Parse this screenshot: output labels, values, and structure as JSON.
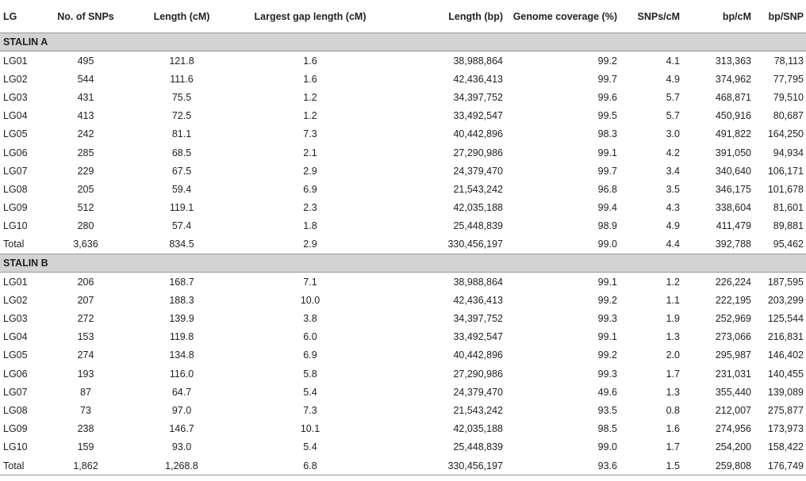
{
  "headers": [
    "LG",
    "No. of SNPs",
    "Length (cM)",
    "Largest gap length (cM)",
    "Length (bp)",
    "Genome coverage (%)",
    "SNPs/cM",
    "bp/cM",
    "bp/SNP"
  ],
  "groups": [
    {
      "label": "STALIN A",
      "rows": [
        [
          "LG01",
          "495",
          "121.8",
          "1.6",
          "38,988,864",
          "99.2",
          "4.1",
          "313,363",
          "78,113"
        ],
        [
          "LG02",
          "544",
          "111.6",
          "1.6",
          "42,436,413",
          "99.7",
          "4.9",
          "374,962",
          "77,795"
        ],
        [
          "LG03",
          "431",
          "75.5",
          "1.2",
          "34,397,752",
          "99.6",
          "5.7",
          "468,871",
          "79,510"
        ],
        [
          "LG04",
          "413",
          "72.5",
          "1.2",
          "33,492,547",
          "99.5",
          "5.7",
          "450,916",
          "80,687"
        ],
        [
          "LG05",
          "242",
          "81.1",
          "7.3",
          "40,442,896",
          "98.3",
          "3.0",
          "491,822",
          "164,250"
        ],
        [
          "LG06",
          "285",
          "68.5",
          "2.1",
          "27,290,986",
          "99.1",
          "4.2",
          "391,050",
          "94,934"
        ],
        [
          "LG07",
          "229",
          "67.5",
          "2.9",
          "24,379,470",
          "99.7",
          "3.4",
          "340,640",
          "106,171"
        ],
        [
          "LG08",
          "205",
          "59.4",
          "6.9",
          "21,543,242",
          "96.8",
          "3.5",
          "346,175",
          "101,678"
        ],
        [
          "LG09",
          "512",
          "119.1",
          "2.3",
          "42,035,188",
          "99.4",
          "4.3",
          "338,604",
          "81,601"
        ],
        [
          "LG10",
          "280",
          "57.4",
          "1.8",
          "25,448,839",
          "98.9",
          "4.9",
          "411,479",
          "89,881"
        ],
        [
          "Total",
          "3,636",
          "834.5",
          "2.9",
          "330,456,197",
          "99.0",
          "4.4",
          "392,788",
          "95,462"
        ]
      ]
    },
    {
      "label": "STALIN B",
      "rows": [
        [
          "LG01",
          "206",
          "168.7",
          "7.1",
          "38,988,864",
          "99.1",
          "1.2",
          "226,224",
          "187,595"
        ],
        [
          "LG02",
          "207",
          "188.3",
          "10.0",
          "42,436,413",
          "99.2",
          "1.1",
          "222,195",
          "203,299"
        ],
        [
          "LG03",
          "272",
          "139.9",
          "3.8",
          "34,397,752",
          "99.3",
          "1.9",
          "252,969",
          "125,544"
        ],
        [
          "LG04",
          "153",
          "119.8",
          "6.0",
          "33,492,547",
          "99.1",
          "1.3",
          "273,066",
          "216,831"
        ],
        [
          "LG05",
          "274",
          "134.8",
          "6.9",
          "40,442,896",
          "99.2",
          "2.0",
          "295,987",
          "146,402"
        ],
        [
          "LG06",
          "193",
          "116.0",
          "5.8",
          "27,290,986",
          "99.3",
          "1.7",
          "231,031",
          "140,455"
        ],
        [
          "LG07",
          "87",
          "64.7",
          "5.4",
          "24,379,470",
          "49.6",
          "1.3",
          "355,440",
          "139,089"
        ],
        [
          "LG08",
          "73",
          "97.0",
          "7.3",
          "21,543,242",
          "93.5",
          "0.8",
          "212,007",
          "275,877"
        ],
        [
          "LG09",
          "238",
          "146.7",
          "10.1",
          "42,035,188",
          "98.5",
          "1.6",
          "274,956",
          "173,973"
        ],
        [
          "LG10",
          "159",
          "93.0",
          "5.4",
          "25,448,839",
          "99.0",
          "1.7",
          "254,200",
          "158,422"
        ],
        [
          "Total",
          "1,862",
          "1,268.8",
          "6.8",
          "330,456,197",
          "93.6",
          "1.5",
          "259,808",
          "176,749"
        ]
      ]
    }
  ]
}
